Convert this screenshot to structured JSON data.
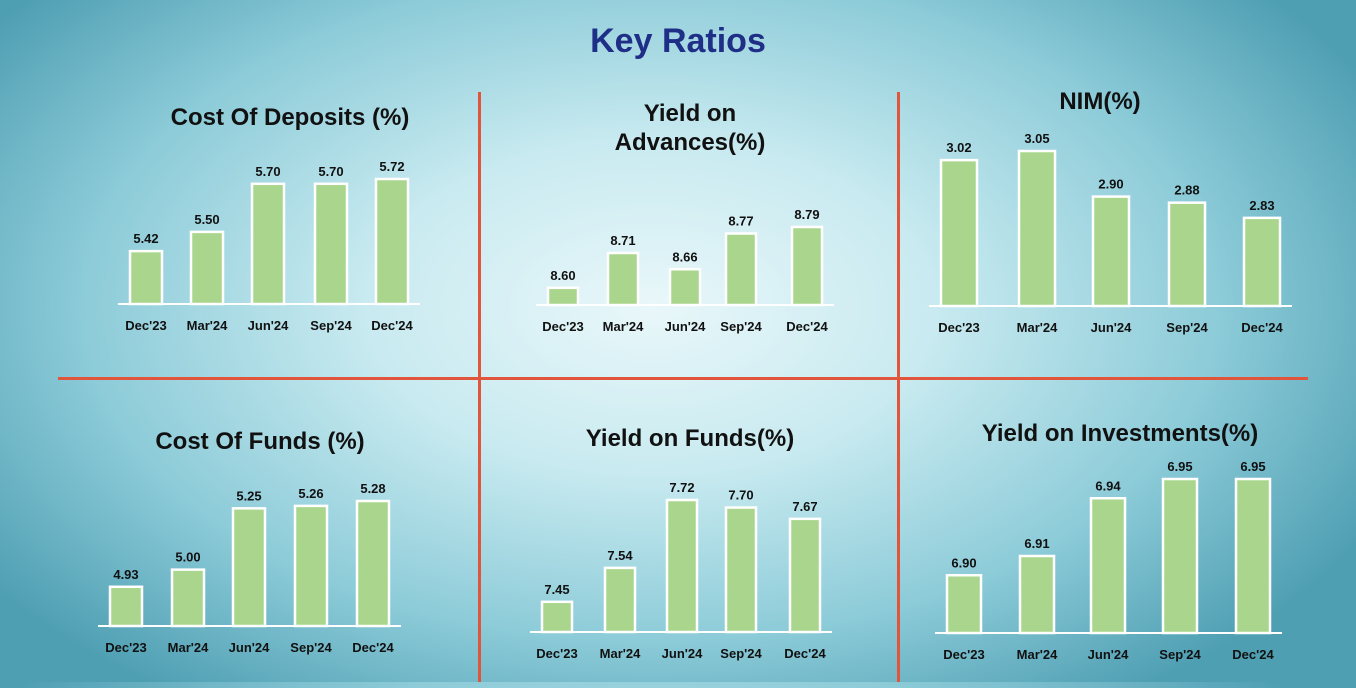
{
  "page_title": "Key Ratios",
  "colors": {
    "bar": "#a9d68c",
    "divider": "#e0553c",
    "title": "#1f2e86"
  },
  "chart_data": [
    {
      "type": "bar",
      "title": "Cost Of Deposits (%)",
      "categories": [
        "Dec'23",
        "Mar'24",
        "Jun'24",
        "Sep'24",
        "Dec'24"
      ],
      "values": [
        5.42,
        5.5,
        5.7,
        5.7,
        5.72
      ],
      "labels": [
        "5.42",
        "5.50",
        "5.70",
        "5.70",
        "5.72"
      ],
      "ylim": [
        5.2,
        5.72
      ]
    },
    {
      "type": "bar",
      "title": "Yield on Advances(%)",
      "categories": [
        "Dec'23",
        "Mar'24",
        "Jun'24",
        "Sep'24",
        "Dec'24"
      ],
      "values": [
        8.6,
        8.71,
        8.66,
        8.77,
        8.79
      ],
      "labels": [
        "8.60",
        "8.71",
        "8.66",
        "8.77",
        "8.79"
      ],
      "ylim": [
        8.55,
        8.79
      ]
    },
    {
      "type": "bar",
      "title": "NIM(%)",
      "categories": [
        "Dec'23",
        "Mar'24",
        "Jun'24",
        "Sep'24",
        "Dec'24"
      ],
      "values": [
        3.02,
        3.05,
        2.9,
        2.88,
        2.83
      ],
      "labels": [
        "3.02",
        "3.05",
        "2.90",
        "2.88",
        "2.83"
      ],
      "ylim": [
        2.54,
        3.05
      ]
    },
    {
      "type": "bar",
      "title": "Cost Of Funds (%)",
      "categories": [
        "Dec'23",
        "Mar'24",
        "Jun'24",
        "Sep'24",
        "Dec'24"
      ],
      "values": [
        4.93,
        5.0,
        5.25,
        5.26,
        5.28
      ],
      "labels": [
        "4.93",
        "5.00",
        "5.25",
        "5.26",
        "5.28"
      ],
      "ylim": [
        4.77,
        5.28
      ]
    },
    {
      "type": "bar",
      "title": "Yield on Funds(%)",
      "categories": [
        "Dec'23",
        "Mar'24",
        "Jun'24",
        "Sep'24",
        "Dec'24"
      ],
      "values": [
        7.45,
        7.54,
        7.72,
        7.7,
        7.67
      ],
      "labels": [
        "7.45",
        "7.54",
        "7.72",
        "7.70",
        "7.67"
      ],
      "ylim": [
        7.37,
        7.72
      ]
    },
    {
      "type": "bar",
      "title": "Yield on Investments(%)",
      "categories": [
        "Dec'23",
        "Mar'24",
        "Jun'24",
        "Sep'24",
        "Dec'24"
      ],
      "values": [
        6.9,
        6.91,
        6.94,
        6.95,
        6.95
      ],
      "labels": [
        "6.90",
        "6.91",
        "6.94",
        "6.95",
        "6.95"
      ],
      "ylim": [
        6.87,
        6.95
      ]
    }
  ]
}
